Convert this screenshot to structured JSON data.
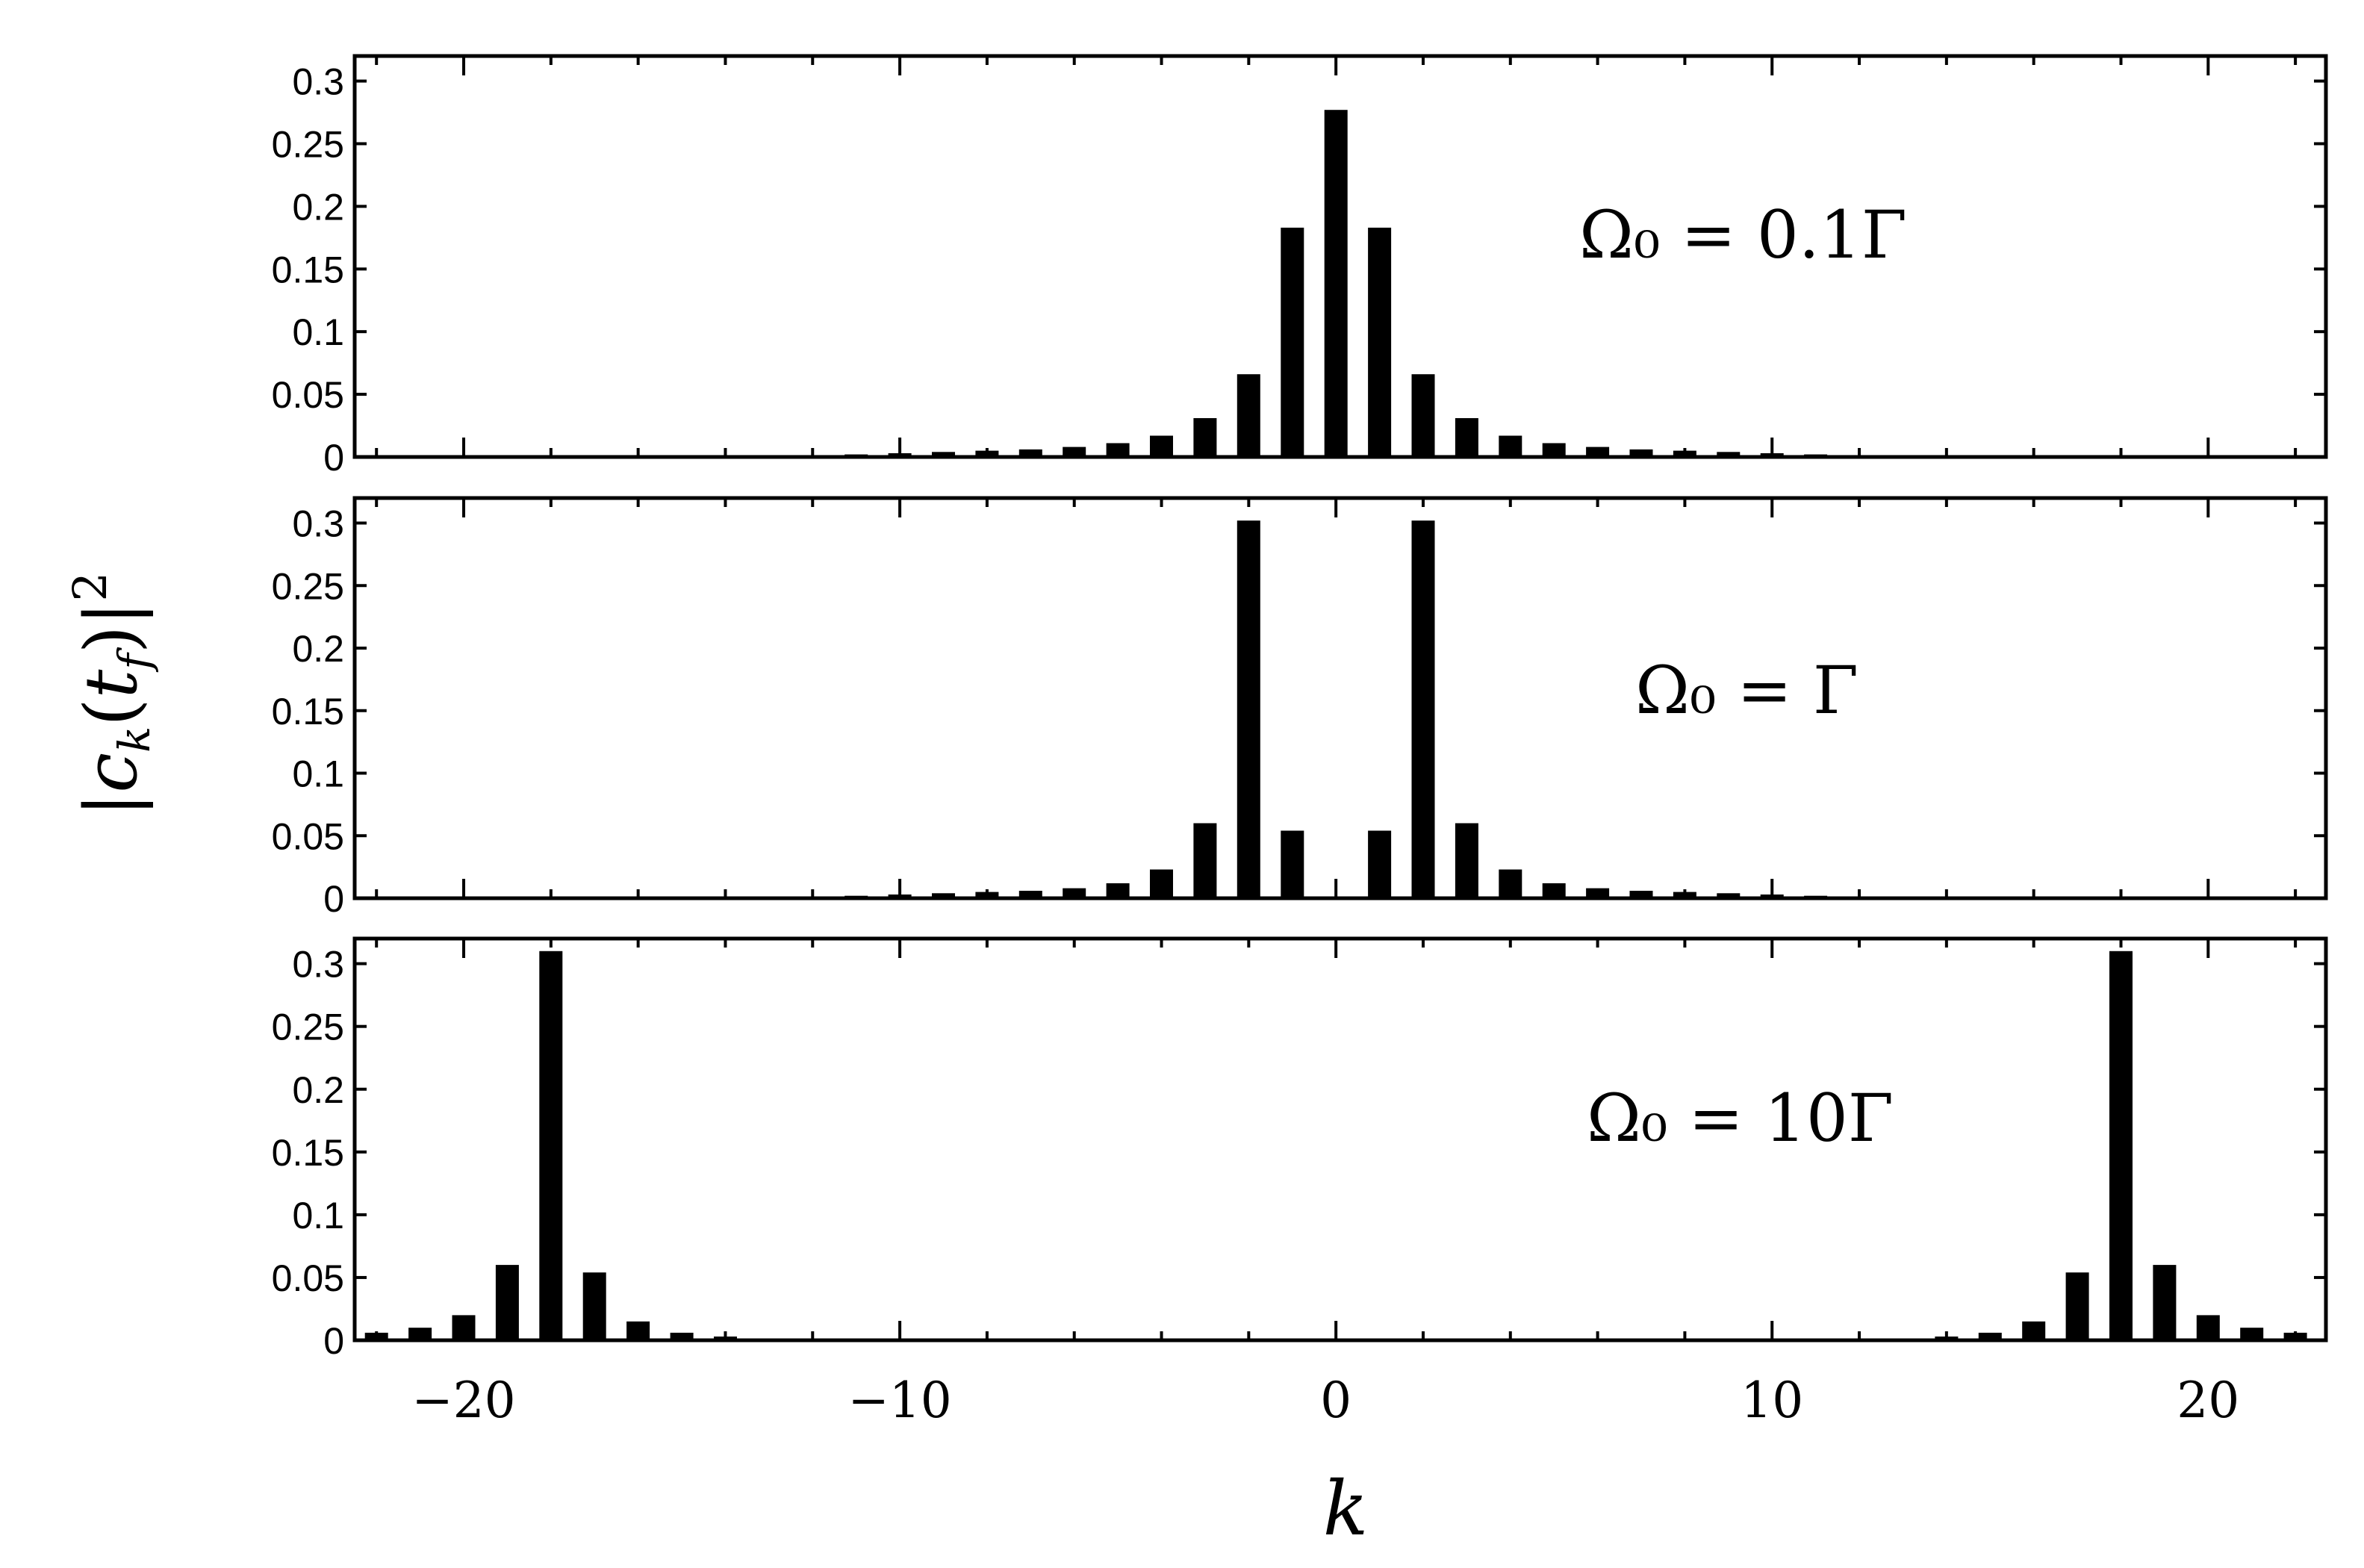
{
  "chart_data": [
    {
      "type": "bar",
      "panel_label": "Ω₀ = 0.1Γ",
      "x": [
        -21,
        -20,
        -19,
        -18,
        -17,
        -16,
        -15,
        -14,
        -13,
        -12,
        -11,
        -10,
        -9,
        -8,
        -7,
        -6,
        -5,
        -4,
        -3,
        -2,
        -1,
        0,
        1,
        2,
        3,
        4,
        5,
        6,
        7,
        8,
        9,
        10,
        11,
        12,
        13,
        14,
        15,
        16,
        17,
        18,
        19,
        20,
        21
      ],
      "values": [
        0,
        0,
        0,
        0,
        0,
        0,
        0,
        0,
        0.0005,
        0.001,
        0.002,
        0.003,
        0.004,
        0.005,
        0.006,
        0.008,
        0.011,
        0.017,
        0.031,
        0.066,
        0.183,
        0.277,
        0.183,
        0.066,
        0.031,
        0.017,
        0.011,
        0.008,
        0.006,
        0.005,
        0.004,
        0.003,
        0.002,
        0.001,
        0.0005,
        0,
        0,
        0,
        0,
        0,
        0,
        0,
        0
      ],
      "ylim": [
        0,
        0.32
      ],
      "yticks": [
        "0",
        "0.05",
        "0.1",
        "0.15",
        "0.2",
        "0.25",
        "0.3"
      ]
    },
    {
      "type": "bar",
      "panel_label": "Ω₀ = Γ",
      "x": [
        -21,
        -20,
        -19,
        -18,
        -17,
        -16,
        -15,
        -14,
        -13,
        -12,
        -11,
        -10,
        -9,
        -8,
        -7,
        -6,
        -5,
        -4,
        -3,
        -2,
        -1,
        0,
        1,
        2,
        3,
        4,
        5,
        6,
        7,
        8,
        9,
        10,
        11,
        12,
        13,
        14,
        15,
        16,
        17,
        18,
        19,
        20,
        21
      ],
      "values": [
        0,
        0,
        0,
        0,
        0,
        0,
        0,
        0.0005,
        0.001,
        0.001,
        0.002,
        0.003,
        0.004,
        0.005,
        0.006,
        0.008,
        0.012,
        0.023,
        0.06,
        0.302,
        0.054,
        0,
        0.054,
        0.302,
        0.06,
        0.023,
        0.012,
        0.008,
        0.006,
        0.005,
        0.004,
        0.003,
        0.002,
        0.001,
        0.001,
        0.0005,
        0,
        0,
        0,
        0,
        0,
        0,
        0
      ],
      "ylim": [
        0,
        0.32
      ],
      "yticks": [
        "0",
        "0.05",
        "0.1",
        "0.15",
        "0.2",
        "0.25",
        "0.3"
      ]
    },
    {
      "type": "bar",
      "panel_label": "Ω₀ = 10Γ",
      "x": [
        -22,
        -21,
        -20,
        -19,
        -18,
        -17,
        -16,
        -15,
        -14,
        -13,
        -12,
        -11,
        -10,
        -9,
        -8,
        -7,
        -6,
        -5,
        -4,
        -3,
        -2,
        -1,
        0,
        1,
        2,
        3,
        4,
        5,
        6,
        7,
        8,
        9,
        10,
        11,
        12,
        13,
        14,
        15,
        16,
        17,
        18,
        19,
        20,
        21,
        22
      ],
      "values": [
        0.006,
        0.01,
        0.02,
        0.06,
        0.31,
        0.054,
        0.015,
        0.006,
        0.003,
        0.001,
        0.0005,
        0,
        0,
        0,
        0,
        0,
        0,
        0,
        0,
        0,
        0,
        0,
        0,
        0,
        0,
        0,
        0,
        0,
        0,
        0,
        0,
        0,
        0,
        0,
        0.0005,
        0.001,
        0.003,
        0.006,
        0.015,
        0.054,
        0.31,
        0.06,
        0.02,
        0.01,
        0.006
      ],
      "ylim": [
        0,
        0.32
      ],
      "yticks": [
        "0",
        "0.05",
        "0.1",
        "0.15",
        "0.2",
        "0.25",
        "0.3"
      ]
    }
  ],
  "axes": {
    "xlabel": "k",
    "ylabel": "|c_k(t_f)|²",
    "xlim": [
      -22.5,
      22.7
    ],
    "xticks": [
      -20,
      -10,
      0,
      10,
      20
    ],
    "xtick_labels": [
      "−20",
      "−10",
      "0",
      "10",
      "20"
    ]
  }
}
